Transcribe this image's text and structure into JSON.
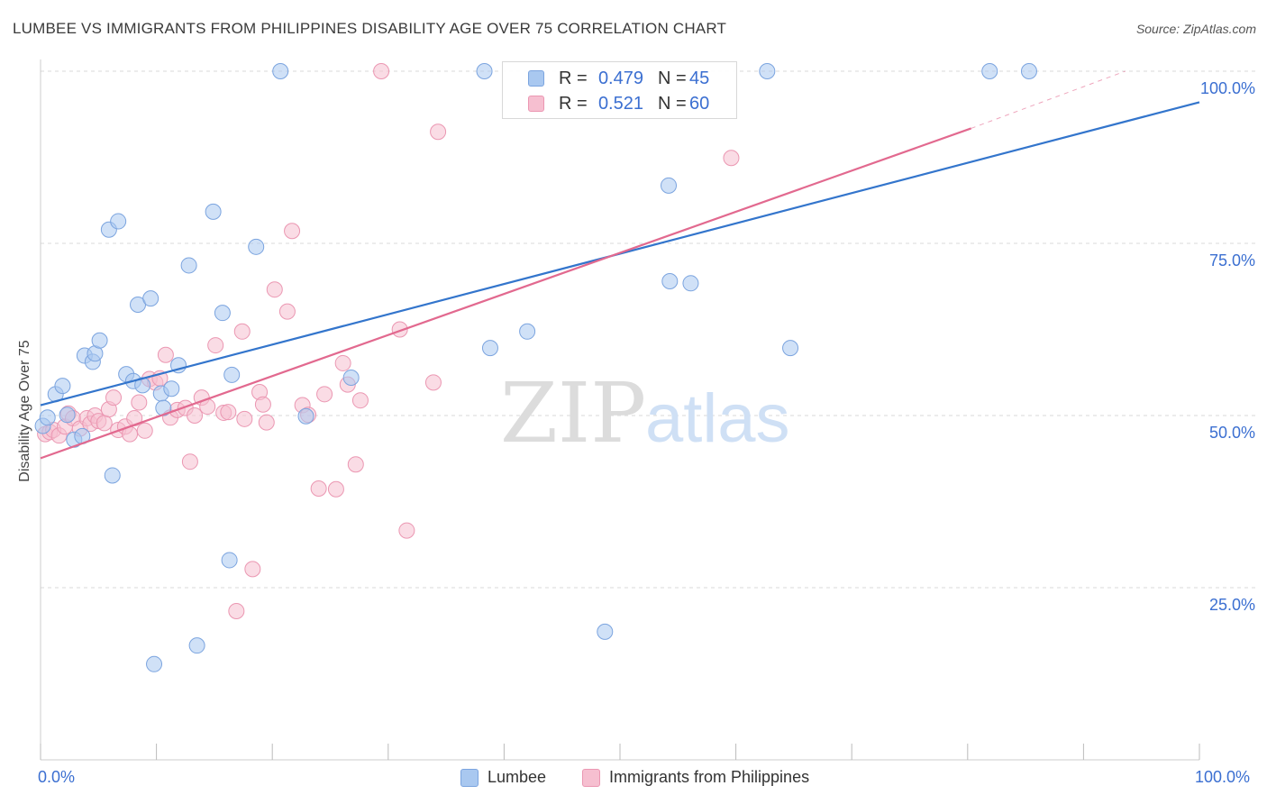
{
  "title": "LUMBEE VS IMMIGRANTS FROM PHILIPPINES DISABILITY AGE OVER 75 CORRELATION CHART",
  "source": "Source: ZipAtlas.com",
  "watermark": {
    "zip": "ZIP",
    "atlas": "atlas"
  },
  "legend_top": {
    "rows": [
      {
        "r_label": "R =",
        "r_value": "0.479",
        "n_label": "N =",
        "n_value": "45"
      },
      {
        "r_label": "R =",
        "r_value": "0.521",
        "n_label": "N =",
        "n_value": "60"
      }
    ]
  },
  "legend_bottom": {
    "series1": "Lumbee",
    "series2": "Immigrants from Philippines"
  },
  "axis_labels": {
    "x_min": "0.0%",
    "x_max": "100.0%"
  },
  "colors": {
    "lumbee_fill": "#a9c8f0",
    "lumbee_stroke": "#7ba4df",
    "lumbee_line": "#3375cc",
    "phil_fill": "#f6bfd0",
    "phil_stroke": "#eb97b2",
    "phil_line": "#e2698f",
    "tick_text": "#3b6fd1",
    "grid": "#d9d9d9"
  },
  "chart_data": {
    "type": "scatter",
    "title": "LUMBEE VS IMMIGRANTS FROM PHILIPPINES DISABILITY AGE OVER 75 CORRELATION CHART",
    "xlabel": "",
    "ylabel": "Disability Age Over 75",
    "xlim": [
      0,
      100
    ],
    "ylim": [
      0,
      100
    ],
    "y_ticks": [
      {
        "value": 25,
        "label": "25.0%"
      },
      {
        "value": 50,
        "label": "50.0%"
      },
      {
        "value": 75,
        "label": "75.0%"
      },
      {
        "value": 100,
        "label": "100.0%"
      }
    ],
    "grid": true,
    "series": [
      {
        "name": "Lumbee",
        "r": 0.479,
        "n": 45,
        "trend": {
          "x": [
            0,
            100
          ],
          "y": [
            51.5,
            95.5
          ]
        },
        "points": [
          [
            0.2,
            48.5
          ],
          [
            0.6,
            49.7
          ],
          [
            1.3,
            53.1
          ],
          [
            1.9,
            54.3
          ],
          [
            2.3,
            50.1
          ],
          [
            2.9,
            46.5
          ],
          [
            3.6,
            47.0
          ],
          [
            3.8,
            58.7
          ],
          [
            4.5,
            57.8
          ],
          [
            4.7,
            59.0
          ],
          [
            5.1,
            60.9
          ],
          [
            5.9,
            77.0
          ],
          [
            6.2,
            41.3
          ],
          [
            6.7,
            78.2
          ],
          [
            7.4,
            56.0
          ],
          [
            8.0,
            55.0
          ],
          [
            8.4,
            66.1
          ],
          [
            8.8,
            54.4
          ],
          [
            9.5,
            67.0
          ],
          [
            9.8,
            13.9
          ],
          [
            10.4,
            53.2
          ],
          [
            10.6,
            51.1
          ],
          [
            11.3,
            53.9
          ],
          [
            11.9,
            57.3
          ],
          [
            12.8,
            71.8
          ],
          [
            13.5,
            16.6
          ],
          [
            14.9,
            79.6
          ],
          [
            15.7,
            64.9
          ],
          [
            16.3,
            29.0
          ],
          [
            16.5,
            55.9
          ],
          [
            18.6,
            74.5
          ],
          [
            20.7,
            100.0
          ],
          [
            22.9,
            49.9
          ],
          [
            26.8,
            55.5
          ],
          [
            38.3,
            100.0
          ],
          [
            38.8,
            59.8
          ],
          [
            42.0,
            62.2
          ],
          [
            48.7,
            18.6
          ],
          [
            54.2,
            83.4
          ],
          [
            54.3,
            69.5
          ],
          [
            56.1,
            69.2
          ],
          [
            62.7,
            100.0
          ],
          [
            64.7,
            59.8
          ],
          [
            81.9,
            100.0
          ],
          [
            85.3,
            100.0
          ]
        ]
      },
      {
        "name": "Immigrants from Philippines",
        "r": 0.521,
        "n": 60,
        "trend": {
          "x": [
            0,
            80.3
          ],
          "y": [
            43.8,
            91.7
          ]
        },
        "trend_dashed_ext": {
          "x": [
            80.3,
            93.6
          ],
          "y": [
            91.7,
            100.0
          ]
        },
        "points": [
          [
            0.4,
            47.3
          ],
          [
            0.8,
            47.6
          ],
          [
            1.1,
            47.9
          ],
          [
            1.6,
            47.1
          ],
          [
            2.1,
            48.4
          ],
          [
            2.4,
            50.3
          ],
          [
            2.8,
            49.6
          ],
          [
            3.4,
            48.1
          ],
          [
            4.0,
            49.6
          ],
          [
            4.3,
            48.8
          ],
          [
            4.7,
            50.0
          ],
          [
            5.0,
            49.2
          ],
          [
            5.5,
            48.9
          ],
          [
            5.9,
            50.9
          ],
          [
            6.3,
            52.6
          ],
          [
            6.7,
            47.9
          ],
          [
            7.3,
            48.4
          ],
          [
            7.7,
            47.3
          ],
          [
            8.1,
            49.6
          ],
          [
            8.5,
            51.9
          ],
          [
            9.0,
            47.8
          ],
          [
            9.4,
            55.3
          ],
          [
            9.9,
            54.8
          ],
          [
            10.3,
            55.4
          ],
          [
            10.8,
            58.8
          ],
          [
            11.2,
            49.7
          ],
          [
            11.8,
            50.8
          ],
          [
            12.5,
            51.1
          ],
          [
            12.9,
            43.3
          ],
          [
            13.3,
            50.0
          ],
          [
            13.9,
            52.6
          ],
          [
            14.4,
            51.3
          ],
          [
            15.1,
            60.2
          ],
          [
            15.8,
            50.4
          ],
          [
            16.2,
            50.5
          ],
          [
            17.4,
            62.2
          ],
          [
            17.6,
            49.5
          ],
          [
            18.3,
            27.7
          ],
          [
            18.9,
            53.4
          ],
          [
            19.2,
            51.6
          ],
          [
            19.5,
            49.0
          ],
          [
            20.2,
            68.3
          ],
          [
            21.3,
            65.1
          ],
          [
            21.7,
            76.8
          ],
          [
            22.6,
            51.5
          ],
          [
            23.1,
            50.1
          ],
          [
            24.0,
            39.4
          ],
          [
            24.5,
            53.1
          ],
          [
            25.5,
            39.3
          ],
          [
            26.1,
            57.6
          ],
          [
            26.5,
            54.5
          ],
          [
            27.2,
            42.9
          ],
          [
            27.6,
            52.2
          ],
          [
            29.4,
            100.0
          ],
          [
            31.0,
            62.5
          ],
          [
            31.6,
            33.3
          ],
          [
            33.9,
            54.8
          ],
          [
            34.3,
            91.2
          ],
          [
            59.6,
            87.4
          ],
          [
            16.9,
            21.6
          ]
        ]
      }
    ]
  }
}
